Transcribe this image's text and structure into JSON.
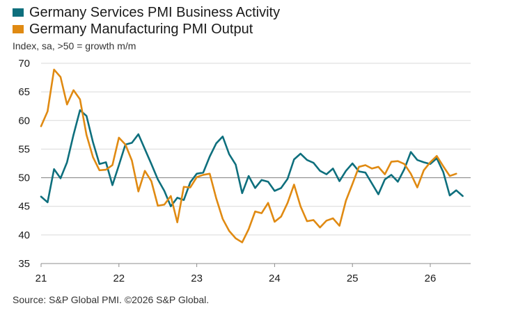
{
  "chart_data": {
    "type": "line",
    "subtitle": "Index, sa, >50 = growth m/m",
    "source": "Source: S&P Global PMI. ©2026 S&P Global.",
    "x_tick_labels": [
      "21",
      "22",
      "23",
      "24",
      "25",
      "26"
    ],
    "y_tick_labels": [
      "70",
      "65",
      "60",
      "55",
      "50",
      "45",
      "40",
      "35"
    ],
    "ylim": [
      35,
      70
    ],
    "y_ticks": [
      70,
      65,
      60,
      55,
      50,
      45,
      40,
      35
    ],
    "x_start": "2021-01",
    "grid": true,
    "reference_line": 50,
    "legend_position": "top-left",
    "series": [
      {
        "name": "Germany Services PMI Business Activity",
        "color": "#0e6f7d",
        "values": [
          46.7,
          45.7,
          51.5,
          49.9,
          52.7,
          57.5,
          61.8,
          60.8,
          56.2,
          52.4,
          52.7,
          48.7,
          52.2,
          55.8,
          56.1,
          57.6,
          55.0,
          52.4,
          49.7,
          47.7,
          45.0,
          46.5,
          46.1,
          49.2,
          50.7,
          50.9,
          53.7,
          56.0,
          57.2,
          54.1,
          52.3,
          47.3,
          50.3,
          48.2,
          49.6,
          49.3,
          47.7,
          48.2,
          49.8,
          53.2,
          54.2,
          53.1,
          52.6,
          51.2,
          50.6,
          51.6,
          49.4,
          51.2,
          52.5,
          51.1,
          50.9,
          49.0,
          47.1,
          49.7,
          50.5,
          49.3,
          51.5,
          54.5,
          53.1,
          52.7,
          52.4,
          53.4,
          51.0,
          46.9,
          47.8,
          46.8
        ]
      },
      {
        "name": "Germany Manufacturing PMI Output",
        "color": "#e08a12",
        "values": [
          59.0,
          61.6,
          68.9,
          67.6,
          62.8,
          65.3,
          63.7,
          57.5,
          53.6,
          51.3,
          51.4,
          52.2,
          57.0,
          55.8,
          53.0,
          47.6,
          51.2,
          49.4,
          45.1,
          45.3,
          46.8,
          42.2,
          48.4,
          48.3,
          50.1,
          50.5,
          50.7,
          46.4,
          42.8,
          40.7,
          39.4,
          38.7,
          41.0,
          44.1,
          43.8,
          45.6,
          42.3,
          43.2,
          45.6,
          48.8,
          45.0,
          42.4,
          42.6,
          41.3,
          42.5,
          42.9,
          41.6,
          46.0,
          48.9,
          51.9,
          52.2,
          51.6,
          51.9,
          50.6,
          52.8,
          52.9,
          52.4,
          50.7,
          48.3,
          51.3,
          52.7,
          53.8,
          52.0,
          50.3,
          50.7
        ]
      }
    ]
  }
}
